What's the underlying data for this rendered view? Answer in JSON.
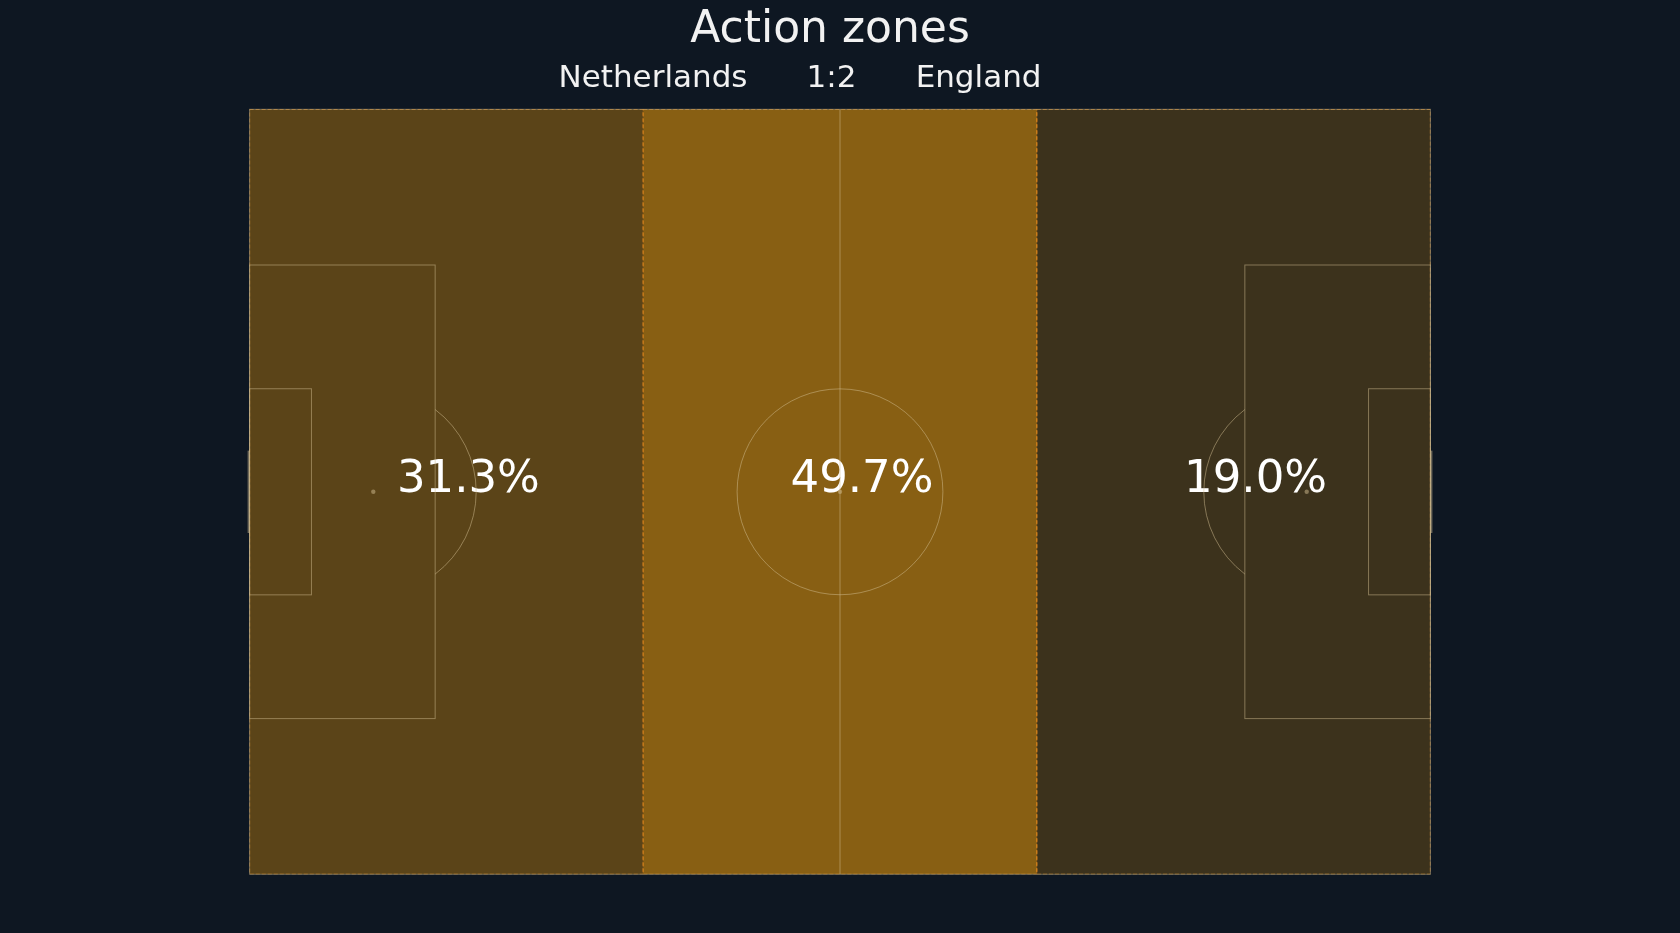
{
  "chart_data": {
    "type": "other",
    "title": "Action zones",
    "subtitle": "Netherlands      1:2      England",
    "categories": [
      null,
      null,
      null
    ],
    "values": [
      31.3,
      49.7,
      19.0
    ],
    "value_labels": [
      "31.3%",
      "49.7%",
      "19.0%"
    ],
    "color": "#885f13"
  }
}
